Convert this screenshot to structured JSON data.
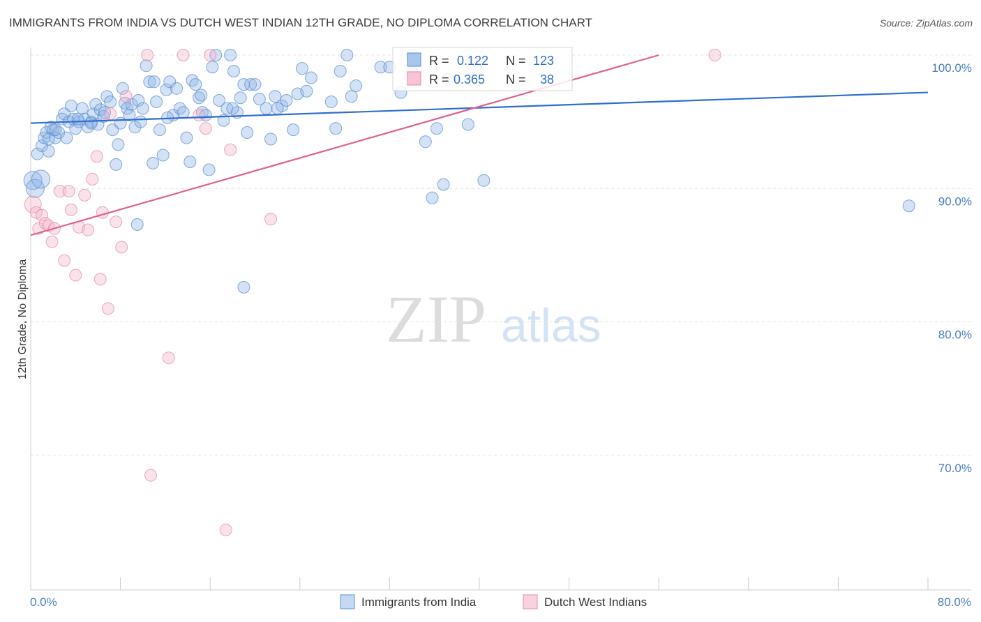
{
  "chart_data": {
    "type": "scatter",
    "title": "IMMIGRANTS FROM INDIA VS DUTCH WEST INDIAN 12TH GRADE, NO DIPLOMA CORRELATION CHART",
    "source": "Source: ZipAtlas.com",
    "ylabel": "12th Grade, No Diploma",
    "xlabel": "",
    "xlim": [
      0,
      80
    ],
    "ylim": [
      61,
      101.5
    ],
    "x_tick_labels": [
      "0.0%",
      "80.0%"
    ],
    "y_ticks": [
      {
        "value": 100,
        "label": "100.0%"
      },
      {
        "value": 90,
        "label": "90.0%"
      },
      {
        "value": 80,
        "label": "80.0%"
      },
      {
        "value": 70,
        "label": "70.0%"
      }
    ],
    "watermark": {
      "zip": "ZIP",
      "atlas": "atlas"
    },
    "legend": {
      "r_label": "R =",
      "n_label": "N =",
      "entries": [
        {
          "r": "0.122",
          "n": "123"
        },
        {
          "r": "0.365",
          "n": "38"
        }
      ]
    },
    "series": [
      {
        "name": "Immigrants from India",
        "color": "#8db4e6",
        "edge_color": "#5b8fd0",
        "line_color": "#2f6fcc",
        "trend": [
          [
            0,
            94.9
          ],
          [
            80,
            97.2
          ]
        ],
        "points": [
          [
            0.2,
            90.6
          ],
          [
            0.4,
            90.0
          ],
          [
            0.6,
            92.6
          ],
          [
            1.0,
            93.2
          ],
          [
            1.2,
            93.8
          ],
          [
            1.4,
            94.2
          ],
          [
            1.6,
            92.8
          ],
          [
            1.8,
            94.6
          ],
          [
            2.0,
            94.4
          ],
          [
            2.2,
            93.8
          ],
          [
            2.5,
            94.2
          ],
          [
            2.8,
            95.2
          ],
          [
            3.0,
            95.6
          ],
          [
            3.2,
            93.8
          ],
          [
            3.4,
            95.0
          ],
          [
            3.6,
            96.2
          ],
          [
            3.8,
            95.2
          ],
          [
            4.0,
            94.5
          ],
          [
            4.3,
            95.0
          ],
          [
            4.6,
            96.0
          ],
          [
            4.8,
            95.2
          ],
          [
            5.1,
            94.6
          ],
          [
            5.4,
            95.0
          ],
          [
            5.6,
            95.6
          ],
          [
            5.8,
            96.3
          ],
          [
            6.0,
            94.8
          ],
          [
            6.2,
            95.9
          ],
          [
            6.5,
            95.4
          ],
          [
            6.8,
            96.9
          ],
          [
            7.1,
            96.5
          ],
          [
            7.3,
            94.4
          ],
          [
            7.6,
            91.8
          ],
          [
            7.8,
            93.3
          ],
          [
            8.0,
            94.9
          ],
          [
            8.2,
            97.5
          ],
          [
            8.4,
            96.4
          ],
          [
            8.6,
            96.0
          ],
          [
            8.8,
            95.5
          ],
          [
            9.0,
            96.3
          ],
          [
            9.3,
            94.6
          ],
          [
            9.6,
            96.6
          ],
          [
            9.8,
            95.0
          ],
          [
            10.0,
            96.0
          ],
          [
            10.3,
            99.2
          ],
          [
            10.6,
            98.0
          ],
          [
            10.9,
            91.9
          ],
          [
            11.2,
            96.5
          ],
          [
            11.5,
            94.4
          ],
          [
            11.8,
            92.5
          ],
          [
            12.1,
            97.4
          ],
          [
            12.4,
            98.0
          ],
          [
            12.7,
            95.5
          ],
          [
            13.0,
            97.5
          ],
          [
            13.3,
            96.0
          ],
          [
            13.6,
            95.7
          ],
          [
            13.9,
            93.8
          ],
          [
            14.2,
            92.0
          ],
          [
            14.4,
            98.1
          ],
          [
            14.7,
            97.8
          ],
          [
            15.0,
            96.8
          ],
          [
            15.3,
            95.7
          ],
          [
            15.6,
            95.5
          ],
          [
            15.9,
            91.4
          ],
          [
            16.2,
            99.1
          ],
          [
            16.5,
            100.0
          ],
          [
            16.8,
            96.6
          ],
          [
            17.2,
            95.1
          ],
          [
            17.5,
            96.0
          ],
          [
            17.8,
            100.0
          ],
          [
            18.1,
            98.8
          ],
          [
            18.4,
            95.7
          ],
          [
            18.7,
            96.8
          ],
          [
            19.0,
            97.8
          ],
          [
            19.3,
            94.2
          ],
          [
            19.6,
            97.8
          ],
          [
            20.0,
            97.8
          ],
          [
            20.4,
            96.7
          ],
          [
            21.0,
            96.0
          ],
          [
            21.4,
            93.7
          ],
          [
            21.8,
            96.9
          ],
          [
            22.4,
            96.2
          ],
          [
            22.8,
            96.6
          ],
          [
            23.4,
            94.4
          ],
          [
            23.8,
            97.1
          ],
          [
            24.2,
            99.0
          ],
          [
            24.6,
            97.3
          ],
          [
            25.0,
            98.3
          ],
          [
            26.8,
            96.5
          ],
          [
            27.2,
            94.5
          ],
          [
            27.6,
            98.8
          ],
          [
            28.2,
            100.0
          ],
          [
            28.6,
            96.9
          ],
          [
            29.0,
            97.7
          ],
          [
            31.2,
            99.1
          ],
          [
            32.0,
            99.1
          ],
          [
            33.0,
            97.2
          ],
          [
            34.0,
            98.7
          ],
          [
            35.2,
            93.5
          ],
          [
            35.8,
            89.3
          ],
          [
            36.2,
            94.5
          ],
          [
            36.8,
            90.3
          ],
          [
            37.2,
            98.2
          ],
          [
            39.0,
            94.8
          ],
          [
            40.4,
            90.6
          ],
          [
            19.0,
            82.6
          ],
          [
            9.5,
            87.3
          ],
          [
            5.4,
            94.9
          ],
          [
            2.2,
            94.4
          ],
          [
            1.6,
            93.7
          ],
          [
            0.9,
            90.7
          ],
          [
            78.3,
            88.7
          ],
          [
            11.0,
            98.0
          ],
          [
            15.2,
            97.0
          ],
          [
            22.0,
            96.0
          ],
          [
            6.6,
            95.7
          ],
          [
            4.2,
            95.2
          ],
          [
            18.0,
            96.0
          ],
          [
            12.2,
            95.3
          ]
        ]
      },
      {
        "name": "Dutch West Indians",
        "color": "#f3b4ca",
        "edge_color": "#e888a8",
        "line_color": "#e0608e",
        "trend": [
          [
            0,
            86.5
          ],
          [
            56,
            100.0
          ]
        ],
        "points": [
          [
            0.2,
            88.8
          ],
          [
            0.5,
            88.2
          ],
          [
            0.7,
            87.0
          ],
          [
            1.0,
            88.0
          ],
          [
            1.3,
            87.4
          ],
          [
            1.6,
            87.2
          ],
          [
            1.9,
            86.0
          ],
          [
            2.1,
            87.0
          ],
          [
            2.6,
            89.8
          ],
          [
            3.0,
            84.6
          ],
          [
            3.4,
            89.8
          ],
          [
            3.6,
            88.4
          ],
          [
            4.0,
            83.5
          ],
          [
            4.3,
            87.1
          ],
          [
            4.8,
            89.5
          ],
          [
            5.1,
            86.9
          ],
          [
            5.5,
            90.7
          ],
          [
            5.9,
            92.4
          ],
          [
            6.2,
            83.2
          ],
          [
            6.4,
            88.2
          ],
          [
            6.9,
            81.0
          ],
          [
            7.1,
            95.6
          ],
          [
            7.6,
            87.5
          ],
          [
            8.1,
            85.6
          ],
          [
            8.5,
            96.9
          ],
          [
            10.4,
            100.0
          ],
          [
            12.3,
            77.3
          ],
          [
            10.7,
            68.5
          ],
          [
            13.6,
            100.0
          ],
          [
            15.0,
            95.5
          ],
          [
            15.6,
            94.5
          ],
          [
            16.0,
            100.0
          ],
          [
            17.4,
            64.4
          ],
          [
            17.8,
            92.9
          ],
          [
            21.4,
            87.7
          ],
          [
            34.0,
            100.0
          ],
          [
            61.0,
            100.0
          ],
          [
            34.3,
            98.8
          ]
        ]
      }
    ]
  }
}
